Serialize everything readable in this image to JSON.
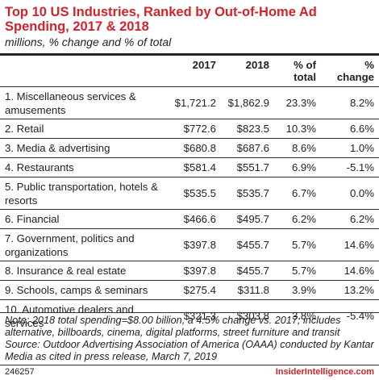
{
  "title": "Top 10 US Industries, Ranked by Out-of-Home Ad Spending, 2017 & 2018",
  "subtitle": "millions, % change and % of total",
  "columns": [
    "",
    "2017",
    "2018",
    "% of total",
    "% change"
  ],
  "chart_data": {
    "type": "table",
    "columns": [
      "Industry",
      "2017",
      "2018",
      "% of total",
      "% change"
    ],
    "rows": [
      {
        "name": "1. Miscellaneous services & amusements",
        "y2017": "$1,721.2",
        "y2018": "$1,862.9",
        "total": "23.3%",
        "change": "8.2%"
      },
      {
        "name": "2. Retail",
        "y2017": "$772.6",
        "y2018": "$823.5",
        "total": "10.3%",
        "change": "6.6%"
      },
      {
        "name": "3. Media & advertising",
        "y2017": "$680.8",
        "y2018": "$687.6",
        "total": "8.6%",
        "change": "1.0%"
      },
      {
        "name": "4. Restaurants",
        "y2017": "$581.4",
        "y2018": "$551.7",
        "total": "6.9%",
        "change": "-5.1%"
      },
      {
        "name": "5. Public transportation, hotels & resorts",
        "y2017": "$535.5",
        "y2018": "$535.7",
        "total": "6.7%",
        "change": "0.0%"
      },
      {
        "name": "6. Financial",
        "y2017": "$466.6",
        "y2018": "$495.7",
        "total": "6.2%",
        "change": "6.2%"
      },
      {
        "name": "7. Government, politics and organizations",
        "y2017": "$397.8",
        "y2018": "$455.7",
        "total": "5.7%",
        "change": "14.6%"
      },
      {
        "name": "8. Insurance & real estate",
        "y2017": "$397.8",
        "y2018": "$455.7",
        "total": "5.7%",
        "change": "14.6%"
      },
      {
        "name": "9. Schools, camps & seminars",
        "y2017": "$275.4",
        "y2018": "$311.8",
        "total": "3.9%",
        "change": "13.2%"
      },
      {
        "name": "10. Automotive dealers and services",
        "y2017": "$321.3",
        "y2018": "$303.8",
        "total": "3.8%",
        "change": "-5.4%"
      }
    ]
  },
  "note": "Note: 2018 total spending=$8.00 billion, a 4.5% change vs. 2017; includes alternative, billboards, cinema, digital platforms, street furniture and transit Source: Outdoor Advertising Association of America (OAAA) conducted by Kantar Media as cited in press release, March 7, 2019",
  "footer": {
    "id": "246257",
    "brand": "InsiderIntelligence.com"
  },
  "colors": {
    "title": "#d0232c",
    "brand": "#d0232c",
    "rule": "#222222"
  }
}
